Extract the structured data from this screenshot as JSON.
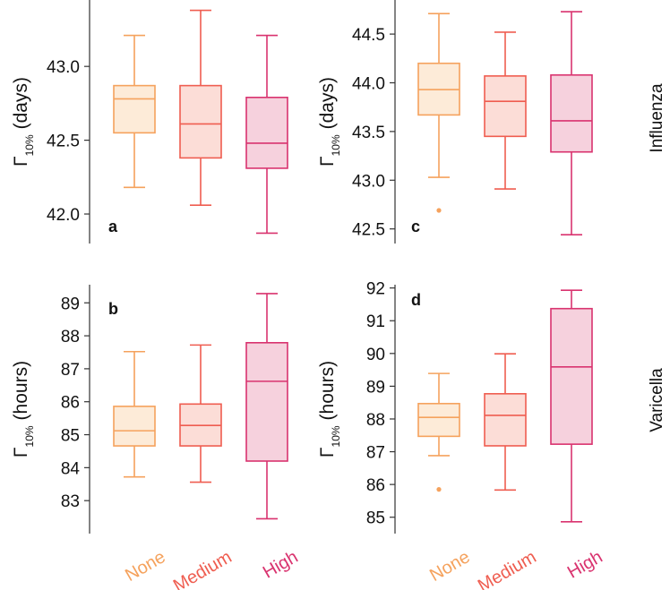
{
  "colors": {
    "None": "#f5a25d",
    "Medium": "#ef5d50",
    "High": "#d9336f",
    "fill_None": "#fdebd8",
    "fill_Medium": "#fcddd7",
    "fill_High": "#f6d1dd"
  },
  "row_labels": [
    "Influenza",
    "Varicella"
  ],
  "chart_data": [
    {
      "panel": "a",
      "type": "box",
      "row": "Influenza",
      "ylabel_main": "Γ",
      "ylabel_sub": "10%",
      "ylabel_unit": "(days)",
      "ylim": [
        41.8,
        43.45
      ],
      "yticks": [
        42.0,
        42.5,
        43.0
      ],
      "ytick_labels": [
        "42.0",
        "42.5",
        "43.0"
      ],
      "categories": [
        "None",
        "Medium",
        "High"
      ],
      "boxes": [
        {
          "category": "None",
          "whisker_low": 42.18,
          "q1": 42.55,
          "median": 42.78,
          "q3": 42.87,
          "whisker_high": 43.21,
          "outliers": []
        },
        {
          "category": "Medium",
          "whisker_low": 42.06,
          "q1": 42.38,
          "median": 42.61,
          "q3": 42.87,
          "whisker_high": 43.38,
          "outliers": []
        },
        {
          "category": "High",
          "whisker_low": 41.87,
          "q1": 42.31,
          "median": 42.48,
          "q3": 42.79,
          "whisker_high": 43.21,
          "outliers": []
        }
      ]
    },
    {
      "panel": "b",
      "type": "box",
      "row": "Varicella",
      "ylabel_main": "Γ",
      "ylabel_sub": "10%",
      "ylabel_unit": "(hours)",
      "ylim": [
        82.0,
        89.55
      ],
      "yticks": [
        83,
        84,
        85,
        86,
        87,
        88,
        89
      ],
      "ytick_labels": [
        "83",
        "84",
        "85",
        "86",
        "87",
        "88",
        "89"
      ],
      "categories": [
        "None",
        "Medium",
        "High"
      ],
      "boxes": [
        {
          "category": "None",
          "whisker_low": 83.72,
          "q1": 84.66,
          "median": 85.12,
          "q3": 85.86,
          "whisker_high": 87.52,
          "outliers": []
        },
        {
          "category": "Medium",
          "whisker_low": 83.56,
          "q1": 84.66,
          "median": 85.28,
          "q3": 85.93,
          "whisker_high": 87.72,
          "outliers": []
        },
        {
          "category": "High",
          "whisker_low": 82.45,
          "q1": 84.2,
          "median": 86.62,
          "q3": 87.79,
          "whisker_high": 89.28,
          "outliers": []
        }
      ]
    },
    {
      "panel": "c",
      "type": "box",
      "row": "Influenza",
      "ylabel_main": "Γ",
      "ylabel_sub": "10%",
      "ylabel_unit": "(days)",
      "ylim": [
        42.35,
        44.85
      ],
      "yticks": [
        42.5,
        43.0,
        43.5,
        44.0,
        44.5
      ],
      "ytick_labels": [
        "42.5",
        "43.0",
        "43.5",
        "44.0",
        "44.5"
      ],
      "categories": [
        "None",
        "Medium",
        "High"
      ],
      "boxes": [
        {
          "category": "None",
          "whisker_low": 43.03,
          "q1": 43.67,
          "median": 43.93,
          "q3": 44.2,
          "whisker_high": 44.71,
          "outliers": [
            42.69
          ]
        },
        {
          "category": "Medium",
          "whisker_low": 42.91,
          "q1": 43.45,
          "median": 43.81,
          "q3": 44.07,
          "whisker_high": 44.52,
          "outliers": []
        },
        {
          "category": "High",
          "whisker_low": 42.44,
          "q1": 43.29,
          "median": 43.61,
          "q3": 44.08,
          "whisker_high": 44.73,
          "outliers": []
        }
      ]
    },
    {
      "panel": "d",
      "type": "box",
      "row": "Varicella",
      "ylabel_main": "Γ",
      "ylabel_sub": "10%",
      "ylabel_unit": "(hours)",
      "ylim": [
        84.5,
        92.1
      ],
      "yticks": [
        85,
        86,
        87,
        88,
        89,
        90,
        91,
        92
      ],
      "ytick_labels": [
        "85",
        "86",
        "87",
        "88",
        "89",
        "90",
        "91",
        "92"
      ],
      "categories": [
        "None",
        "Medium",
        "High"
      ],
      "boxes": [
        {
          "category": "None",
          "whisker_low": 86.88,
          "q1": 87.47,
          "median": 88.05,
          "q3": 88.47,
          "whisker_high": 89.39,
          "outliers": [
            85.85
          ]
        },
        {
          "category": "Medium",
          "whisker_low": 85.83,
          "q1": 87.18,
          "median": 88.11,
          "q3": 88.77,
          "whisker_high": 89.99,
          "outliers": []
        },
        {
          "category": "High",
          "whisker_low": 84.86,
          "q1": 87.23,
          "median": 89.59,
          "q3": 91.37,
          "whisker_high": 91.93,
          "outliers": []
        }
      ]
    }
  ]
}
